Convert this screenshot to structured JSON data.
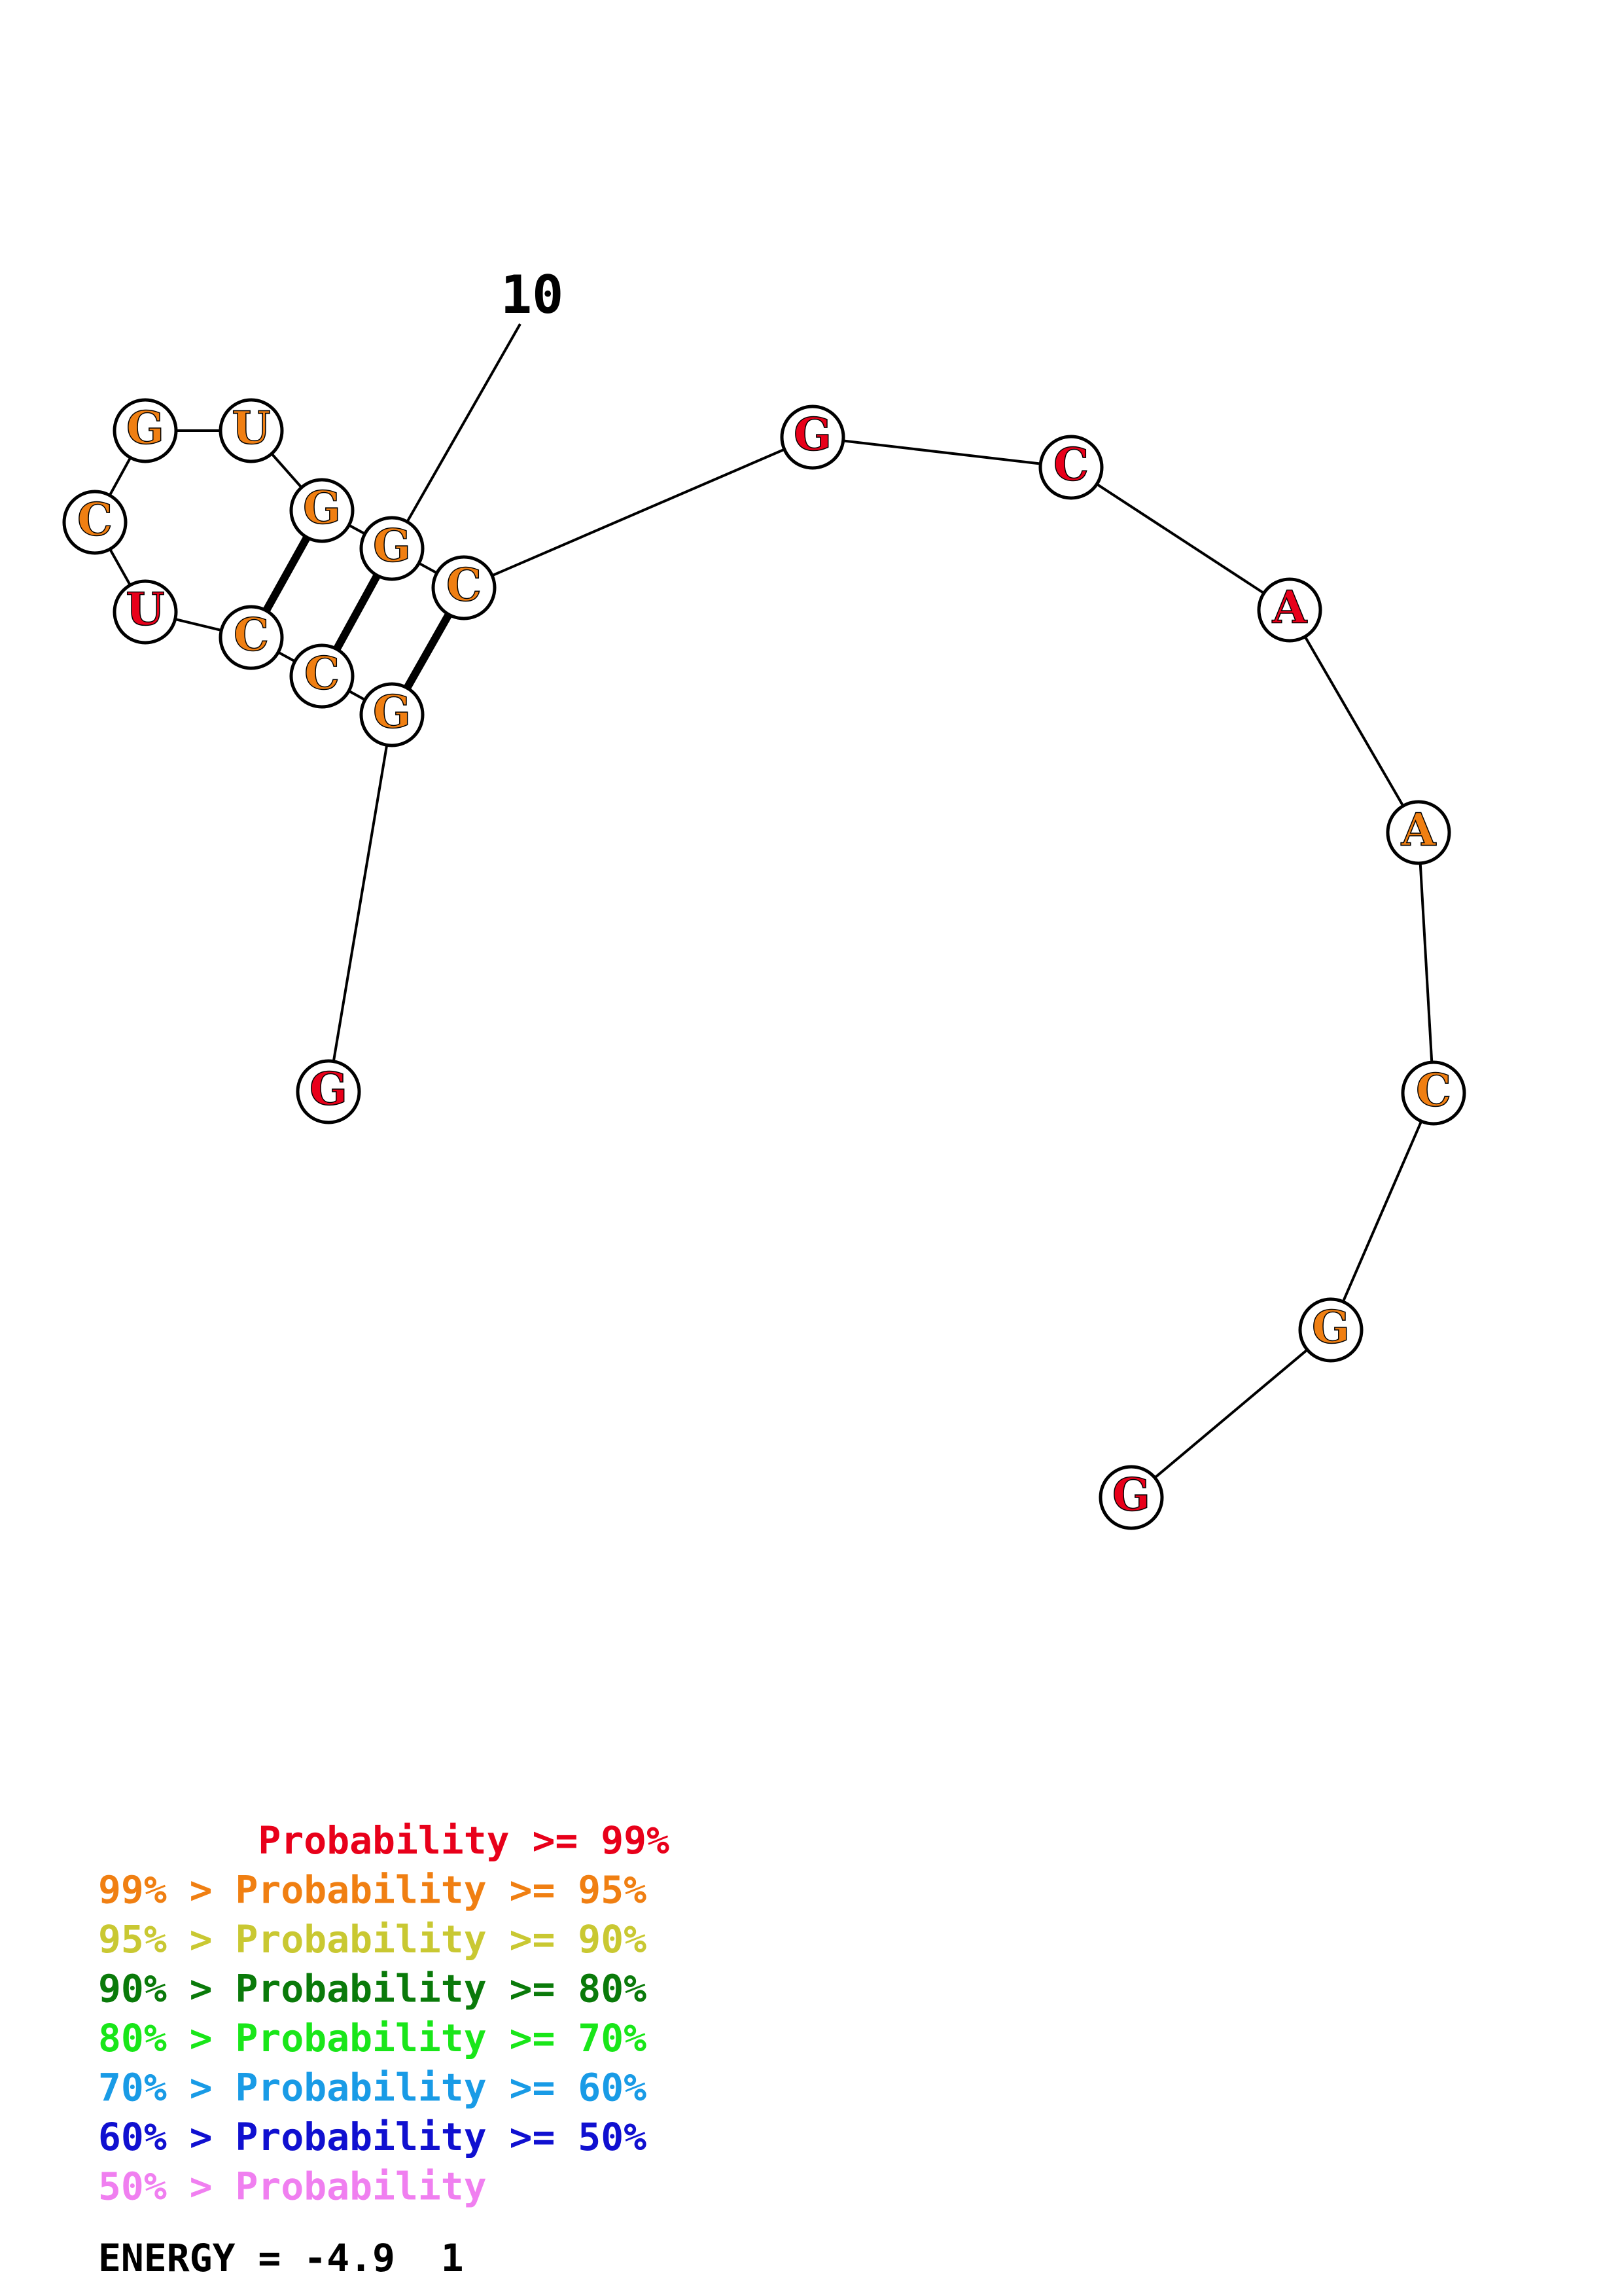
{
  "diagram": {
    "index_label": "10",
    "colors": {
      "p99": "#e8001a",
      "p95": "#f07f12",
      "p90": "#c9c832",
      "p80": "#0a7a0a",
      "p70": "#19e619",
      "p60": "#199be6",
      "p50": "#1010d0",
      "plow": "#f07ff0",
      "energy": "#000000"
    },
    "bases": [
      {
        "n": 1,
        "letter": "G",
        "prob": "p99"
      },
      {
        "n": 2,
        "letter": "G",
        "prob": "p95"
      },
      {
        "n": 3,
        "letter": "C",
        "prob": "p95"
      },
      {
        "n": 4,
        "letter": "C",
        "prob": "p95"
      },
      {
        "n": 5,
        "letter": "U",
        "prob": "p99"
      },
      {
        "n": 6,
        "letter": "C",
        "prob": "p95"
      },
      {
        "n": 7,
        "letter": "G",
        "prob": "p95"
      },
      {
        "n": 8,
        "letter": "U",
        "prob": "p95"
      },
      {
        "n": 9,
        "letter": "G",
        "prob": "p95"
      },
      {
        "n": 10,
        "letter": "G",
        "prob": "p95"
      },
      {
        "n": 11,
        "letter": "C",
        "prob": "p95"
      },
      {
        "n": 12,
        "letter": "G",
        "prob": "p99"
      },
      {
        "n": 13,
        "letter": "C",
        "prob": "p99"
      },
      {
        "n": 14,
        "letter": "A",
        "prob": "p99"
      },
      {
        "n": 15,
        "letter": "A",
        "prob": "p95"
      },
      {
        "n": 16,
        "letter": "C",
        "prob": "p95"
      },
      {
        "n": 17,
        "letter": "G",
        "prob": "p95"
      },
      {
        "n": 18,
        "letter": "G",
        "prob": "p99"
      }
    ],
    "pairs": [
      [
        2,
        11
      ],
      [
        3,
        10
      ],
      [
        4,
        9
      ]
    ]
  },
  "legend": {
    "lines": [
      {
        "text": "       Probability >= 99%",
        "prob": "p99"
      },
      {
        "text": "99% > Probability >= 95%",
        "prob": "p95"
      },
      {
        "text": "95% > Probability >= 90%",
        "prob": "p90"
      },
      {
        "text": "90% > Probability >= 80%",
        "prob": "p80"
      },
      {
        "text": "80% > Probability >= 70%",
        "prob": "p70"
      },
      {
        "text": "70% > Probability >= 60%",
        "prob": "p60"
      },
      {
        "text": "60% > Probability >= 50%",
        "prob": "p50"
      },
      {
        "text": "50% > Probability",
        "prob": "plow"
      }
    ],
    "energy": "ENERGY = -4.9  1"
  }
}
